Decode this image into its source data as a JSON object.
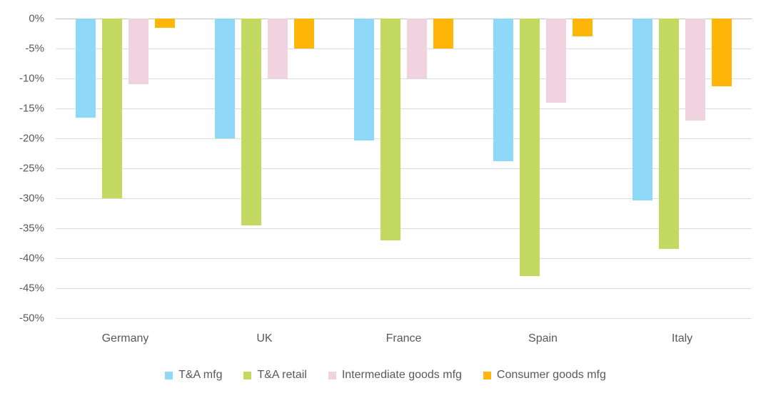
{
  "colors": {
    "background": "#FFFFFF",
    "text": "#595959",
    "gridline": "#DCDCDC",
    "zero_line": "#C2C2C2",
    "series_blue": "#8FD8F7",
    "series_green": "#C4D962",
    "series_pink": "#F1D3DF",
    "series_orange": "#FFB608"
  },
  "chart_data": {
    "type": "bar",
    "title": "",
    "orientation": "vertical-negative",
    "categories": [
      "Germany",
      "UK",
      "France",
      "Spain",
      "Italy"
    ],
    "series": [
      {
        "name": "T&A mfg",
        "color": "#8FD8F7",
        "values": [
          -16.5,
          -20,
          -20.3,
          -23.8,
          -30.3
        ]
      },
      {
        "name": "T&A retail",
        "color": "#C4D962",
        "values": [
          -30,
          -34.5,
          -37,
          -43,
          -38.5
        ]
      },
      {
        "name": "Intermediate goods mfg",
        "color": "#F1D3DF",
        "values": [
          -11,
          -10,
          -10,
          -14,
          -17
        ]
      },
      {
        "name": "Consumer goods mfg",
        "color": "#FFB608",
        "values": [
          -1.5,
          -5,
          -5,
          -3,
          -11.3
        ]
      }
    ],
    "y_axis": {
      "min": -50,
      "max": 0,
      "step": 5,
      "unit": "%",
      "tick_labels": [
        "0%",
        "-5%",
        "-10%",
        "-15%",
        "-20%",
        "-25%",
        "-30%",
        "-35%",
        "-40%",
        "-45%",
        "-50%"
      ]
    },
    "xlabel": "",
    "ylabel": "",
    "grid": true,
    "legend_position": "bottom",
    "legend_items": [
      "T&A mfg",
      "T&A retail",
      "Intermediate goods mfg",
      "Consumer goods mfg"
    ]
  }
}
